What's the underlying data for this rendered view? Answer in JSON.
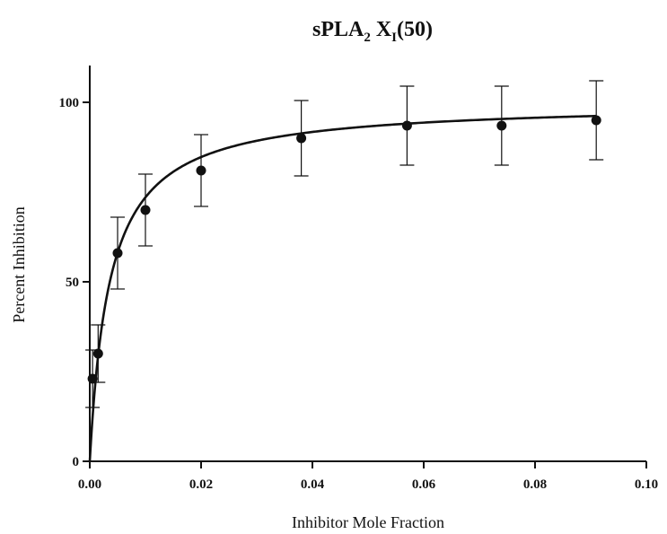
{
  "chart_data": {
    "type": "scatter",
    "title": {
      "main": "sPLA",
      "sub1": "2",
      "mid": " X",
      "sub2": "I",
      "tail": "(50)"
    },
    "xlabel": "Inhibitor Mole Fraction",
    "ylabel": "Percent Inhibition",
    "xlim": [
      0,
      0.1
    ],
    "ylim": [
      0,
      110
    ],
    "xticks": [
      0.0,
      0.02,
      0.04,
      0.06,
      0.08,
      0.1
    ],
    "xtick_labels": [
      "0.00",
      "0.02",
      "0.04",
      "0.06",
      "0.08",
      "0.10"
    ],
    "yticks": [
      0,
      50,
      100
    ],
    "ytick_labels": [
      "0",
      "50",
      "100"
    ],
    "grid": false,
    "legend": "none",
    "points": [
      {
        "x": 0.0005,
        "y": 23,
        "err": 8
      },
      {
        "x": 0.0015,
        "y": 30,
        "err": 8
      },
      {
        "x": 0.005,
        "y": 58,
        "err": 10
      },
      {
        "x": 0.01,
        "y": 70,
        "err": 10
      },
      {
        "x": 0.02,
        "y": 81,
        "err": 10
      },
      {
        "x": 0.038,
        "y": 90,
        "err": 10.5
      },
      {
        "x": 0.057,
        "y": 93.5,
        "err": 11
      },
      {
        "x": 0.074,
        "y": 93.5,
        "err": 11
      },
      {
        "x": 0.091,
        "y": 95,
        "err": 11
      }
    ],
    "fit_curve": {
      "model": "hyperbolic",
      "ymax": 100,
      "k": 0.0036,
      "x_range": [
        0,
        0.091
      ]
    }
  }
}
